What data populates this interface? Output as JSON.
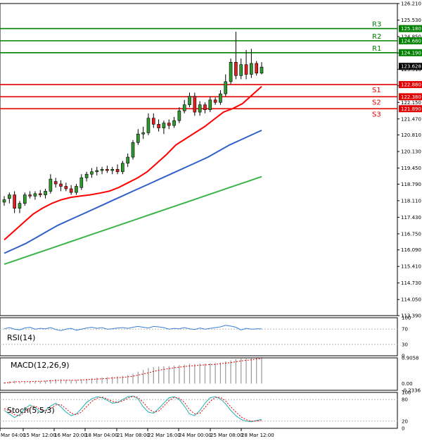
{
  "chart_data": [
    {
      "type": "candlestick",
      "title": "",
      "panel": "price",
      "ylim": [
        113.39,
        126.21
      ],
      "y_ticks": [
        "126.210",
        "125.530",
        "124.850",
        "124.180",
        "123.510",
        "122.830",
        "122.150",
        "121.470",
        "120.810",
        "120.130",
        "119.450",
        "118.790",
        "118.110",
        "117.430",
        "116.750",
        "116.090",
        "115.410",
        "114.730",
        "114.050",
        "113.390"
      ],
      "x_labels": [
        "Mar 04:00",
        "15 Mar 12:00",
        "16 Mar 20:00",
        "18 Mar 04:00",
        "21 Mar 08:00",
        "22 Mar 16:00",
        "24 Mar 00:00",
        "25 Mar 08:00",
        "28 Mar 12:00"
      ],
      "current_price": {
        "value": 123.628,
        "label": "123.628",
        "color": "#000000"
      },
      "levels": [
        {
          "name": "R3",
          "value": 125.18,
          "label": "125.180",
          "color": "#008000"
        },
        {
          "name": "R2",
          "value": 124.68,
          "label": "124.680",
          "color": "#008000"
        },
        {
          "name": "R1",
          "value": 124.19,
          "label": "124.190",
          "color": "#008000"
        },
        {
          "name": "S1",
          "value": 122.88,
          "label": "122.880",
          "color": "#e00000"
        },
        {
          "name": "S2",
          "value": 122.38,
          "label": "122.380",
          "color": "#e00000"
        },
        {
          "name": "S3",
          "value": 121.89,
          "label": "121.890",
          "color": "#e00000"
        }
      ],
      "candles": [
        {
          "o": 118.05,
          "h": 118.3,
          "l": 117.9,
          "c": 118.15
        },
        {
          "o": 118.2,
          "h": 118.45,
          "l": 118.0,
          "c": 118.35
        },
        {
          "o": 118.35,
          "h": 118.5,
          "l": 117.6,
          "c": 117.8
        },
        {
          "o": 117.8,
          "h": 118.1,
          "l": 117.6,
          "c": 118.0
        },
        {
          "o": 118.0,
          "h": 118.45,
          "l": 117.9,
          "c": 118.35
        },
        {
          "o": 118.35,
          "h": 118.5,
          "l": 118.2,
          "c": 118.3
        },
        {
          "o": 118.3,
          "h": 118.5,
          "l": 118.15,
          "c": 118.4
        },
        {
          "o": 118.4,
          "h": 118.55,
          "l": 118.25,
          "c": 118.35
        },
        {
          "o": 118.35,
          "h": 118.6,
          "l": 118.2,
          "c": 118.5
        },
        {
          "o": 118.5,
          "h": 119.2,
          "l": 118.4,
          "c": 119.0
        },
        {
          "o": 118.9,
          "h": 119.05,
          "l": 118.65,
          "c": 118.8
        },
        {
          "o": 118.8,
          "h": 118.95,
          "l": 118.5,
          "c": 118.7
        },
        {
          "o": 118.7,
          "h": 118.85,
          "l": 118.5,
          "c": 118.6
        },
        {
          "o": 118.6,
          "h": 118.75,
          "l": 118.35,
          "c": 118.45
        },
        {
          "o": 118.45,
          "h": 118.8,
          "l": 118.35,
          "c": 118.7
        },
        {
          "o": 118.65,
          "h": 119.2,
          "l": 118.55,
          "c": 119.05
        },
        {
          "o": 119.05,
          "h": 119.3,
          "l": 118.9,
          "c": 119.2
        },
        {
          "o": 119.2,
          "h": 119.45,
          "l": 119.05,
          "c": 119.3
        },
        {
          "o": 119.3,
          "h": 119.5,
          "l": 119.15,
          "c": 119.35
        },
        {
          "o": 119.35,
          "h": 119.5,
          "l": 119.2,
          "c": 119.4
        },
        {
          "o": 119.4,
          "h": 119.55,
          "l": 119.25,
          "c": 119.35
        },
        {
          "o": 119.35,
          "h": 119.5,
          "l": 119.2,
          "c": 119.4
        },
        {
          "o": 119.4,
          "h": 119.6,
          "l": 119.2,
          "c": 119.3
        },
        {
          "o": 119.3,
          "h": 119.75,
          "l": 119.2,
          "c": 119.65
        },
        {
          "o": 119.65,
          "h": 120.05,
          "l": 119.5,
          "c": 119.9
        },
        {
          "o": 119.9,
          "h": 120.6,
          "l": 119.8,
          "c": 120.5
        },
        {
          "o": 120.5,
          "h": 121.05,
          "l": 120.4,
          "c": 120.85
        },
        {
          "o": 120.85,
          "h": 121.15,
          "l": 120.65,
          "c": 120.9
        },
        {
          "o": 120.9,
          "h": 121.7,
          "l": 120.8,
          "c": 121.5
        },
        {
          "o": 121.5,
          "h": 121.7,
          "l": 121.1,
          "c": 121.25
        },
        {
          "o": 121.25,
          "h": 121.45,
          "l": 120.95,
          "c": 121.1
        },
        {
          "o": 121.1,
          "h": 121.4,
          "l": 120.85,
          "c": 121.3
        },
        {
          "o": 121.3,
          "h": 121.45,
          "l": 121.05,
          "c": 121.2
        },
        {
          "o": 121.2,
          "h": 121.55,
          "l": 121.1,
          "c": 121.4
        },
        {
          "o": 121.4,
          "h": 121.95,
          "l": 121.3,
          "c": 121.8
        },
        {
          "o": 121.8,
          "h": 122.25,
          "l": 121.7,
          "c": 122.05
        },
        {
          "o": 122.05,
          "h": 122.55,
          "l": 121.95,
          "c": 122.4
        },
        {
          "o": 122.4,
          "h": 122.55,
          "l": 121.6,
          "c": 121.75
        },
        {
          "o": 121.75,
          "h": 122.2,
          "l": 121.6,
          "c": 122.05
        },
        {
          "o": 122.05,
          "h": 122.15,
          "l": 121.7,
          "c": 121.85
        },
        {
          "o": 121.85,
          "h": 122.4,
          "l": 121.75,
          "c": 122.25
        },
        {
          "o": 122.25,
          "h": 122.35,
          "l": 122.05,
          "c": 122.15
        },
        {
          "o": 122.15,
          "h": 122.65,
          "l": 122.05,
          "c": 122.5
        },
        {
          "o": 122.5,
          "h": 123.3,
          "l": 122.4,
          "c": 123.0
        },
        {
          "o": 123.0,
          "h": 123.95,
          "l": 122.9,
          "c": 123.8
        },
        {
          "o": 123.8,
          "h": 125.05,
          "l": 123.1,
          "c": 123.25
        },
        {
          "o": 123.25,
          "h": 123.95,
          "l": 123.1,
          "c": 123.7
        },
        {
          "o": 123.7,
          "h": 124.3,
          "l": 123.1,
          "c": 123.3
        },
        {
          "o": 123.3,
          "h": 124.35,
          "l": 123.15,
          "c": 123.75
        },
        {
          "o": 123.75,
          "h": 123.85,
          "l": 123.25,
          "c": 123.35
        },
        {
          "o": 123.35,
          "h": 123.8,
          "l": 123.3,
          "c": 123.6
        }
      ],
      "series": [
        {
          "color": "#ff0000",
          "x0": 0,
          "x1": 50,
          "values": [
            116.5,
            116.85,
            117.2,
            117.55,
            117.8,
            118.0,
            118.15,
            118.25,
            118.3,
            118.35,
            118.42,
            118.5,
            118.65,
            118.85,
            119.05,
            119.3,
            119.65,
            120.0,
            120.4,
            120.65,
            120.9,
            121.15,
            121.45,
            121.75,
            121.9,
            122.1,
            122.45,
            122.8
          ]
        },
        {
          "color": "#3060c8",
          "x0": 0,
          "x1": 50,
          "values": [
            115.95,
            116.15,
            116.35,
            116.6,
            116.85,
            117.1,
            117.3,
            117.5,
            117.7,
            117.9,
            118.1,
            118.3,
            118.5,
            118.7,
            118.9,
            119.1,
            119.3,
            119.5,
            119.7,
            119.9,
            120.15,
            120.4,
            120.6,
            120.8,
            121.0
          ]
        },
        {
          "color": "#3cb44b",
          "x0": 0,
          "x1": 50,
          "values": [
            115.5,
            115.65,
            115.8,
            115.95,
            116.1,
            116.25,
            116.4,
            116.55,
            116.7,
            116.85,
            117.0,
            117.15,
            117.3,
            117.45,
            117.6,
            117.75,
            117.9,
            118.05,
            118.2,
            118.35,
            118.5,
            118.65,
            118.8,
            118.95,
            119.1
          ]
        }
      ]
    },
    {
      "type": "line",
      "panel": "rsi",
      "label": "RSI(14)",
      "ylim": [
        0,
        100
      ],
      "y_ticks": [
        "100",
        "70",
        "30",
        "0"
      ],
      "guides": [
        70,
        30
      ],
      "series": [
        {
          "color": "#3a82d8",
          "values": [
            71,
            74,
            70,
            68,
            73,
            75,
            70,
            72,
            71,
            74,
            69,
            66,
            70,
            72,
            67,
            70,
            73,
            75,
            72,
            74,
            70,
            71,
            73,
            74,
            72,
            75,
            77,
            75,
            73,
            77,
            76,
            74,
            70,
            72,
            71,
            74,
            71,
            69,
            73,
            70,
            72,
            74,
            76,
            80,
            78,
            75,
            68,
            72,
            70,
            71,
            71
          ]
        }
      ]
    },
    {
      "type": "bar",
      "panel": "macd",
      "label": "MACD(12,26,9)",
      "ylim": [
        -0.2336,
        0.9058
      ],
      "y_ticks": [
        "0.9058",
        "0.00",
        "-0.2336"
      ],
      "histogram": [
        0.05,
        0.08,
        0.1,
        0.06,
        0.05,
        0.07,
        0.08,
        0.09,
        0.1,
        0.14,
        0.16,
        0.15,
        0.13,
        0.12,
        0.13,
        0.15,
        0.17,
        0.19,
        0.21,
        0.22,
        0.23,
        0.24,
        0.25,
        0.27,
        0.3,
        0.35,
        0.42,
        0.48,
        0.55,
        0.58,
        0.6,
        0.61,
        0.62,
        0.63,
        0.65,
        0.67,
        0.7,
        0.69,
        0.7,
        0.7,
        0.72,
        0.72,
        0.74,
        0.78,
        0.82,
        0.86,
        0.88,
        0.88,
        0.89,
        0.89,
        0.89
      ],
      "signal": {
        "color": "#e00000",
        "values": [
          0.02,
          0.04,
          0.06,
          0.07,
          0.07,
          0.07,
          0.08,
          0.08,
          0.09,
          0.1,
          0.11,
          0.12,
          0.12,
          0.12,
          0.12,
          0.13,
          0.14,
          0.15,
          0.16,
          0.17,
          0.18,
          0.2,
          0.21,
          0.22,
          0.24,
          0.26,
          0.3,
          0.34,
          0.38,
          0.43,
          0.47,
          0.5,
          0.53,
          0.56,
          0.58,
          0.6,
          0.62,
          0.63,
          0.65,
          0.66,
          0.67,
          0.68,
          0.7,
          0.72,
          0.74,
          0.77,
          0.8,
          0.82,
          0.84,
          0.86,
          0.88
        ]
      }
    },
    {
      "type": "line",
      "panel": "stochastic",
      "label": "Stoch(5,5,3)",
      "ylim": [
        0,
        100
      ],
      "y_ticks": [
        "100",
        "80",
        "20",
        "0"
      ],
      "guides": [
        80,
        20
      ],
      "series": [
        {
          "color": "#20b0b0",
          "values": [
            50,
            40,
            30,
            38,
            55,
            65,
            58,
            45,
            50,
            62,
            70,
            60,
            45,
            35,
            40,
            55,
            72,
            82,
            88,
            85,
            78,
            70,
            72,
            80,
            88,
            90,
            82,
            60,
            45,
            42,
            55,
            70,
            85,
            88,
            80,
            62,
            40,
            35,
            50,
            70,
            85,
            88,
            82,
            68,
            50,
            35,
            25,
            20,
            18,
            22,
            25
          ]
        },
        {
          "color": "#e00000",
          "dashed": true,
          "values": [
            55,
            48,
            38,
            35,
            45,
            58,
            62,
            52,
            48,
            55,
            65,
            66,
            55,
            42,
            38,
            45,
            60,
            75,
            84,
            87,
            82,
            75,
            72,
            76,
            84,
            89,
            86,
            72,
            55,
            45,
            48,
            62,
            77,
            86,
            84,
            72,
            52,
            40,
            42,
            58,
            75,
            86,
            86,
            76,
            60,
            45,
            32,
            24,
            20,
            20,
            22
          ]
        }
      ]
    }
  ]
}
